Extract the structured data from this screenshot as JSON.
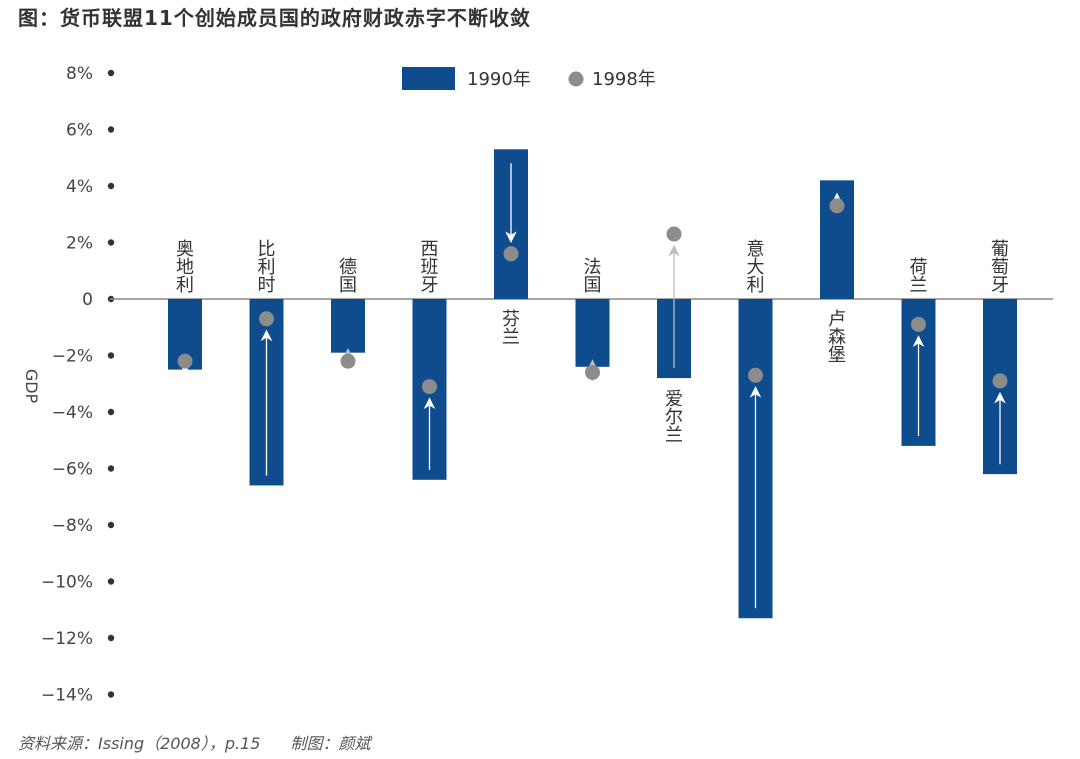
{
  "title": "图：货币联盟11个创始成员国的政府财政赤字不断收敛",
  "source": "资料来源：Issing（2008），p.15",
  "credit": "制图：颜斌",
  "colors": {
    "bar": "#0f4c8e",
    "dot": "#8c8c8c",
    "arrow_on_bar": "#ffffff",
    "arrow_off_bar": "#bdbdbd",
    "axis": "#888888"
  },
  "chart_data": {
    "type": "bar",
    "ylabel": "GDP",
    "ylim": [
      -14,
      8
    ],
    "yticks": [
      8,
      6,
      4,
      2,
      0,
      -2,
      -4,
      -6,
      -8,
      -10,
      -12,
      -14
    ],
    "ytick_labels": [
      "8%",
      "6%",
      "4%",
      "2%",
      "0",
      "−2%",
      "−4%",
      "−6%",
      "−8%",
      "−10%",
      "−12%",
      "−14%"
    ],
    "legend_position": "top-center",
    "categories": [
      "奥地利",
      "比利时",
      "德国",
      "西班牙",
      "芬兰",
      "法国",
      "爱尔兰",
      "意大利",
      "卢森堡",
      "荷兰",
      "葡萄牙"
    ],
    "series": [
      {
        "name": "1990年",
        "kind": "bar",
        "values": [
          -2.5,
          -6.6,
          -1.9,
          -6.4,
          5.3,
          -2.4,
          -2.8,
          -11.3,
          4.2,
          -5.2,
          -6.2
        ]
      },
      {
        "name": "1998年",
        "kind": "dot",
        "values": [
          -2.2,
          -0.7,
          -2.2,
          -3.1,
          1.6,
          -2.6,
          2.3,
          -2.7,
          3.3,
          -0.9,
          -2.9
        ]
      }
    ]
  }
}
